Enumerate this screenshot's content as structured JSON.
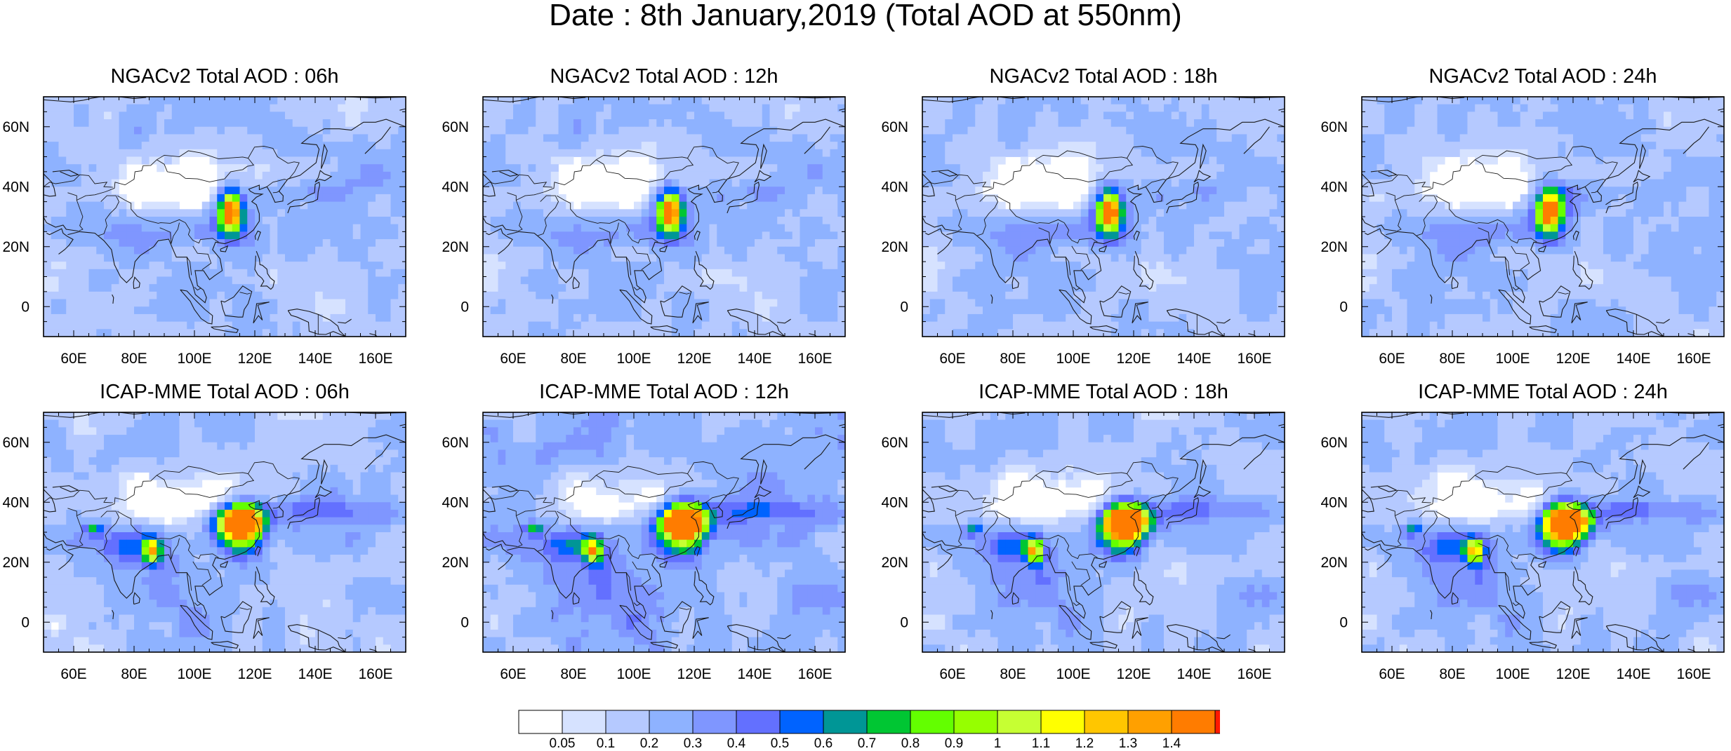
{
  "figure_title": "Date : 8th January,2019 (Total AOD at 550nm)",
  "panels": [
    {
      "title": "NGACv2 Total AOD : 06h"
    },
    {
      "title": "NGACv2 Total AOD : 12h"
    },
    {
      "title": "NGACv2 Total AOD : 18h"
    },
    {
      "title": "NGACv2 Total AOD : 24h"
    },
    {
      "title": "ICAP-MME Total AOD : 06h"
    },
    {
      "title": "ICAP-MME Total AOD : 12h"
    },
    {
      "title": "ICAP-MME Total AOD : 18h"
    },
    {
      "title": "ICAP-MME Total AOD : 24h"
    }
  ],
  "map_extent": {
    "lon": [
      50,
      170
    ],
    "lat": [
      -10,
      70
    ]
  },
  "lon_ticks": [
    {
      "value": 60,
      "label": "60E"
    },
    {
      "value": 80,
      "label": "80E"
    },
    {
      "value": 100,
      "label": "100E"
    },
    {
      "value": 120,
      "label": "120E"
    },
    {
      "value": 140,
      "label": "140E"
    },
    {
      "value": 160,
      "label": "160E"
    }
  ],
  "lat_ticks": [
    {
      "value": 60,
      "label": "60N"
    },
    {
      "value": 40,
      "label": "40N"
    },
    {
      "value": 20,
      "label": "20N"
    },
    {
      "value": 0,
      "label": "0"
    }
  ],
  "colorbar": {
    "colors": [
      "#ffffff",
      "#d6e2ff",
      "#b5c9ff",
      "#8eb2ff",
      "#7f96ff",
      "#6370ff",
      "#0063ff",
      "#009696",
      "#00c633",
      "#63ff00",
      "#96ff00",
      "#c6ff33",
      "#ffff00",
      "#ffc600",
      "#ffa000",
      "#ff7c00",
      "#ff1900"
    ],
    "labels": [
      "0.05",
      "0.1",
      "0.2",
      "0.3",
      "0.4",
      "0.5",
      "0.6",
      "0.7",
      "0.8",
      "0.9",
      "1",
      "1.1",
      "1.2",
      "1.3",
      "1.4"
    ]
  }
}
